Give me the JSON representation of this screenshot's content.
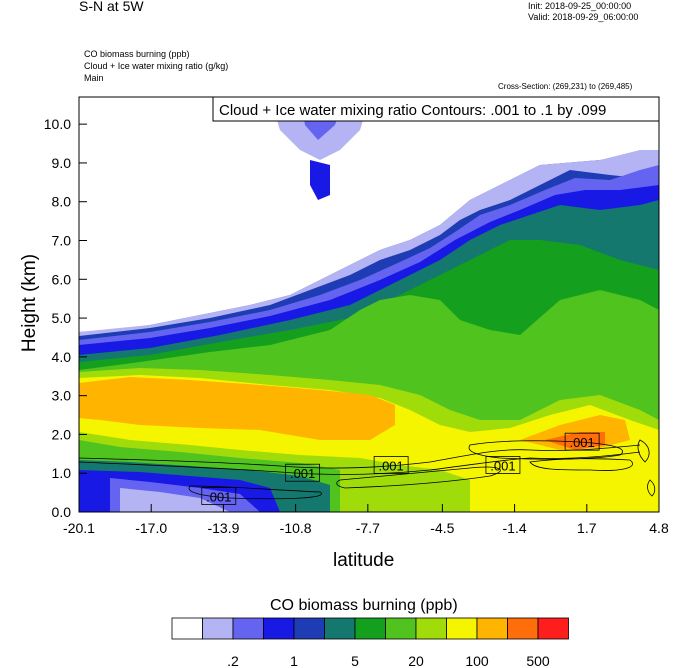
{
  "header": {
    "title": "S-N at 5W",
    "init": "Init: 2018-09-25_00:00:00",
    "valid": "Valid: 2018-09-29_06:00:00"
  },
  "fields": [
    "CO biomass burning   (ppb)",
    "Cloud + Ice water mixing ratio   (g/kg)",
    "Main"
  ],
  "cross_section": "Cross-Section: (269,231) to (269,485)",
  "contour_info": "Cloud + Ice water mixing ratio Contours: .001 to .1 by .099",
  "colorbar": {
    "title": "CO biomass burning  (ppb)",
    "colors": [
      "#ffffff",
      "#b4b4f5",
      "#6464f0",
      "#1919e6",
      "#1e3cb4",
      "#14786e",
      "#14a01e",
      "#50c31e",
      "#a0dc0a",
      "#f5f500",
      "#ffb400",
      "#ff6e0a",
      "#ff1e1e"
    ],
    "labels": [
      ".2",
      "1",
      "5",
      "20",
      "100",
      "500"
    ]
  },
  "chart_data": {
    "type": "heatmap",
    "subtype": "vertical cross-section, filled contours with line contours",
    "xlabel": "latitude",
    "ylabel": "Height (km)",
    "x_ticks": [
      "-20.1",
      "-17.0",
      "-13.9",
      "-10.8",
      "-7.7",
      "-4.5",
      "-1.4",
      "1.7",
      "4.8"
    ],
    "y_ticks": [
      "0.0",
      "1.0",
      "2.0",
      "3.0",
      "4.0",
      "5.0",
      "6.0",
      "7.0",
      "8.0",
      "9.0",
      "10.0"
    ],
    "xlim": [
      -20.1,
      4.8
    ],
    "ylim": [
      0.0,
      10.7
    ],
    "contour_labels": [
      {
        "text": ".001",
        "x": -14.1,
        "y": 0.4
      },
      {
        "text": ".001",
        "x": -10.5,
        "y": 1.0
      },
      {
        "text": ".001",
        "x": -6.7,
        "y": 1.2
      },
      {
        "text": ".001",
        "x": -1.9,
        "y": 1.2
      },
      {
        "text": ".001",
        "x": 1.5,
        "y": 1.8
      }
    ]
  }
}
